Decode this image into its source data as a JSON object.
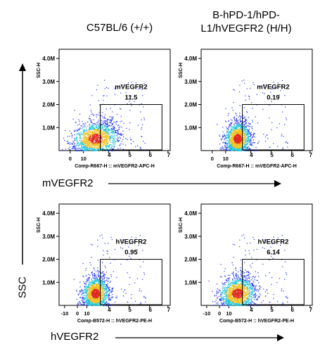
{
  "columns": [
    {
      "line1": "C57BL/6 (+/+)",
      "line2": ""
    },
    {
      "line1": "B-hPD-1/hPD-",
      "line2": "L1/hVEGFR2 (H/H)"
    }
  ],
  "row_axis_labels": [
    "mVEGFR2",
    "hVEGFR2"
  ],
  "y_axis_label": "SSC",
  "colors": {
    "dense": "#e0281e",
    "sparse": "#1a2ff0",
    "mid": "#22c4d8"
  },
  "chart_data": [
    {
      "type": "scatter",
      "panel": "top-left",
      "strain": "C57BL/6 (+/+)",
      "gate_label": "mVEGFR2",
      "gate_percent": "11.5",
      "xlabel": "Comp-R667-H :: mVEGFR2-APC-H",
      "ylabel": "SSC-H",
      "x_ticks": [
        "0",
        "10",
        "4",
        "5",
        "6",
        "7"
      ],
      "y_ticks": [
        "4.0M",
        "3.0M",
        "2.0M",
        "1.0M"
      ],
      "gate": {
        "x_from_decade": 3.6,
        "x_to_decade": 6.6,
        "y_from": 0,
        "y_to": 2000000
      }
    },
    {
      "type": "scatter",
      "panel": "top-right",
      "strain": "B-hPD-1/hPD-L1/hVEGFR2 (H/H)",
      "gate_label": "mVEGFR2",
      "gate_percent": "0.19",
      "xlabel": "Comp-R667-H :: mVEGFR2-APC-H",
      "ylabel": "SSC-H",
      "x_ticks": [
        "0",
        "10",
        "4",
        "5",
        "6",
        "7"
      ],
      "y_ticks": [
        "4.0M",
        "3.0M",
        "2.0M",
        "1.0M"
      ],
      "gate": {
        "x_from_decade": 3.6,
        "x_to_decade": 6.6,
        "y_from": 0,
        "y_to": 2000000
      }
    },
    {
      "type": "scatter",
      "panel": "bottom-left",
      "strain": "C57BL/6 (+/+)",
      "gate_label": "hVEGFR2",
      "gate_percent": "0.95",
      "xlabel": "Comp-B572-H :: hVEGFR2-PE-H",
      "ylabel": "SSC-H",
      "x_ticks": [
        "-10",
        "0",
        "10",
        "4",
        "5",
        "6",
        "7"
      ],
      "y_ticks": [
        "4.0M",
        "3.0M",
        "2.0M",
        "1.0M"
      ],
      "gate": {
        "x_from_decade": 3.6,
        "x_to_decade": 6.6,
        "y_from": 0,
        "y_to": 2000000
      }
    },
    {
      "type": "scatter",
      "panel": "bottom-right",
      "strain": "B-hPD-1/hPD-L1/hVEGFR2 (H/H)",
      "gate_label": "hVEGFR2",
      "gate_percent": "6.14",
      "xlabel": "Comp-B572-H :: hVEGFR2-PE-H",
      "ylabel": "SSC-H",
      "x_ticks": [
        "-10",
        "0",
        "10",
        "4",
        "5",
        "6",
        "7"
      ],
      "y_ticks": [
        "4.0M",
        "3.0M",
        "2.0M",
        "1.0M"
      ],
      "gate": {
        "x_from_decade": 3.6,
        "x_to_decade": 6.6,
        "y_from": 0,
        "y_to": 2000000
      }
    }
  ]
}
